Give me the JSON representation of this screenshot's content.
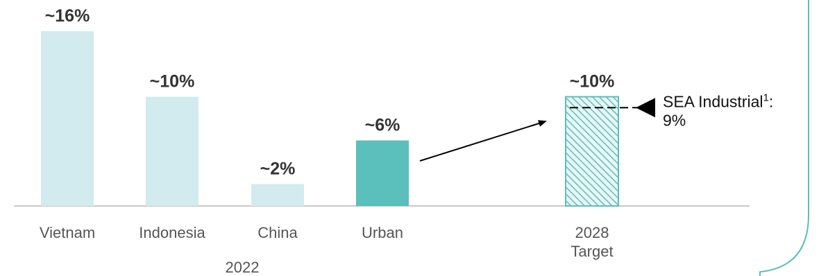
{
  "chart_data": {
    "type": "bar",
    "categories": [
      "Vietnam",
      "Indonesia",
      "China",
      "Urban",
      "2028 Target"
    ],
    "values": [
      16,
      10,
      2,
      6,
      10
    ],
    "data_labels": [
      "~16%",
      "~10%",
      "~2%",
      "~6%",
      "~10%"
    ],
    "group_label": "2022",
    "target_label_lines": [
      "2028",
      "Target"
    ],
    "title": "",
    "xlabel": "",
    "ylabel": "",
    "ylim": [
      0,
      16
    ],
    "grid": false,
    "legend": "none",
    "reference_line": {
      "value": 9,
      "label": "SEA Industrial",
      "footnote": "1",
      "separator": ":",
      "value_label": "9%"
    },
    "colors": {
      "comparison": "#d2ebee",
      "urban": "#5bbfbb",
      "target_hatch": "#5bbfbb",
      "target_fill": "#e9f6f6",
      "axis": "#c8c8c8",
      "frame": "#5bbfbb"
    }
  }
}
